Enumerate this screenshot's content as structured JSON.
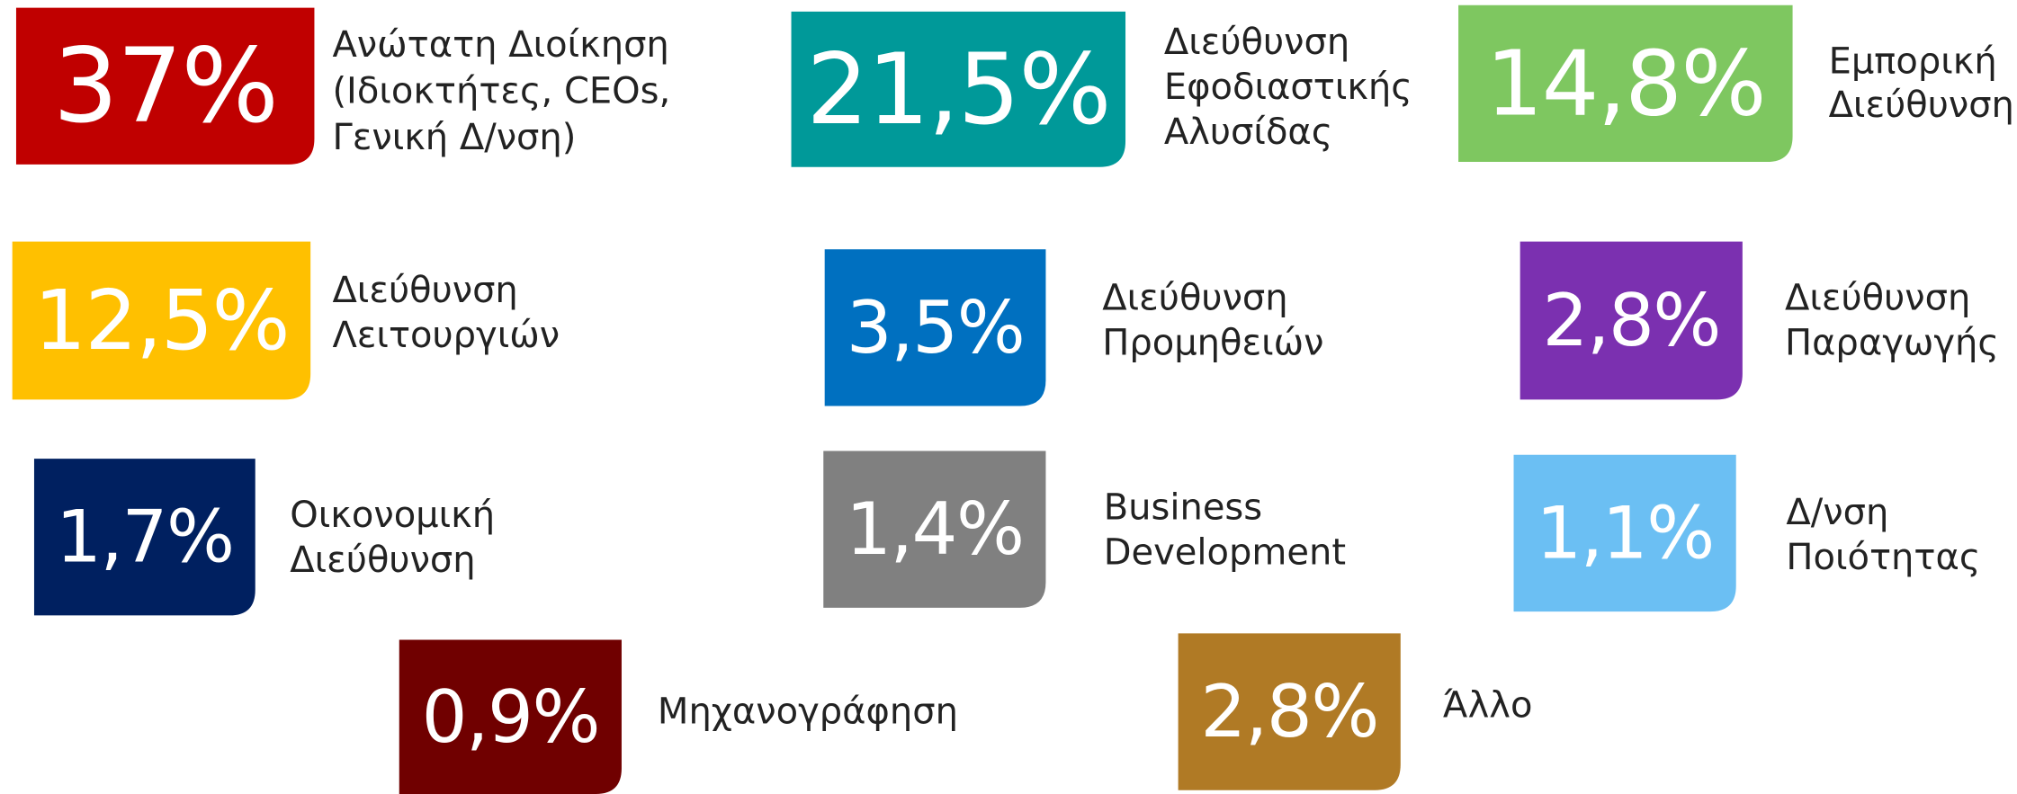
{
  "items": [
    {
      "percent": "37%",
      "label": [
        "Ανώτατη Διοίκηση",
        "(Ιδιοκτήτες, CEOs,",
        "Γενική Δ/νση)"
      ],
      "color": "#c00000"
    },
    {
      "percent": "21,5%",
      "label": [
        "Διεύθυνση",
        "Εφοδιαστικής",
        "Αλυσίδας"
      ],
      "color": "#009999"
    },
    {
      "percent": "14,8%",
      "label": [
        "Εμπορική",
        "Διεύθυνση"
      ],
      "color": "#7ec760"
    },
    {
      "percent": "12,5%",
      "label": [
        "Διεύθυνση",
        "Λειτουργιών"
      ],
      "color": "#ffc000"
    },
    {
      "percent": "3,5%",
      "label": [
        "Διεύθυνση",
        "Προμηθειών"
      ],
      "color": "#0070c0"
    },
    {
      "percent": "2,8%",
      "label": [
        "Διεύθυνση",
        "Παραγωγής"
      ],
      "color": "#7b30b0"
    },
    {
      "percent": "1,7%",
      "label": [
        "Οικονομική",
        "Διεύθυνση"
      ],
      "color": "#002060"
    },
    {
      "percent": "1,4%",
      "label": [
        "Business",
        "Development"
      ],
      "color": "#808080"
    },
    {
      "percent": "1,1%",
      "label": [
        "Δ/νση",
        "Ποιότητας"
      ],
      "color": "#6bbff3"
    },
    {
      "percent": "0,9%",
      "label": [
        "Μηχανογράφηση"
      ],
      "color": "#700000"
    },
    {
      "percent": "2,8%",
      "label": [
        "Άλλο"
      ],
      "color": "#b07a25"
    }
  ]
}
